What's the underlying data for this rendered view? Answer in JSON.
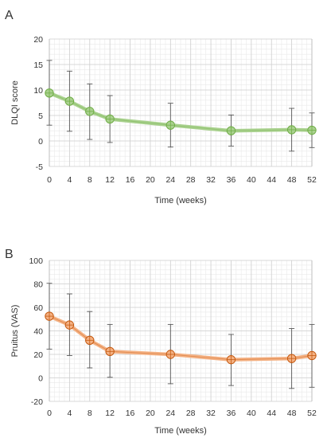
{
  "chart_data": [
    {
      "panel_label": "A",
      "type": "line",
      "xlabel": "Time (weeks)",
      "ylabel": "DLQI score",
      "xlim": [
        0,
        52
      ],
      "ylim": [
        -5,
        20
      ],
      "yticks": [
        -5,
        0,
        5,
        10,
        15,
        20
      ],
      "xticks": [
        0,
        4,
        8,
        12,
        16,
        20,
        24,
        28,
        32,
        36,
        40,
        44,
        48,
        52
      ],
      "grid": true,
      "color": "#a9d18e",
      "marker_color": "#70ad47",
      "series": [
        {
          "x": [
            0,
            4,
            8,
            12,
            24,
            36,
            48,
            52
          ],
          "y": [
            9.4,
            7.8,
            5.8,
            4.3,
            3.1,
            2.0,
            2.2,
            2.1
          ],
          "err_low": [
            3.1,
            1.9,
            0.3,
            -0.3,
            -1.2,
            -1.0,
            -2.0,
            -1.3
          ],
          "err_high": [
            15.8,
            13.7,
            11.2,
            8.9,
            7.4,
            5.1,
            6.4,
            5.5
          ]
        }
      ]
    },
    {
      "panel_label": "B",
      "type": "line",
      "xlabel": "Time (weeks)",
      "ylabel": "Pruitus (VAS)",
      "xlim": [
        0,
        52
      ],
      "ylim": [
        -20,
        100
      ],
      "yticks": [
        -20,
        0,
        20,
        40,
        60,
        80,
        100
      ],
      "xticks": [
        0,
        4,
        8,
        12,
        16,
        20,
        24,
        28,
        32,
        36,
        40,
        44,
        48,
        52
      ],
      "grid": true,
      "color": "#f4b183",
      "marker_color": "#c55a11",
      "series": [
        {
          "x": [
            0,
            4,
            8,
            12,
            24,
            36,
            48,
            52
          ],
          "y": [
            52.5,
            45.0,
            32.0,
            22.5,
            20.0,
            15.5,
            16.5,
            19.0
          ],
          "err_low": [
            24.5,
            19.0,
            8.5,
            0.5,
            -5.0,
            -6.5,
            -9.0,
            -8.0
          ],
          "err_high": [
            80.5,
            71.5,
            56.5,
            45.5,
            45.5,
            37.0,
            42.0,
            45.5
          ]
        }
      ]
    }
  ]
}
